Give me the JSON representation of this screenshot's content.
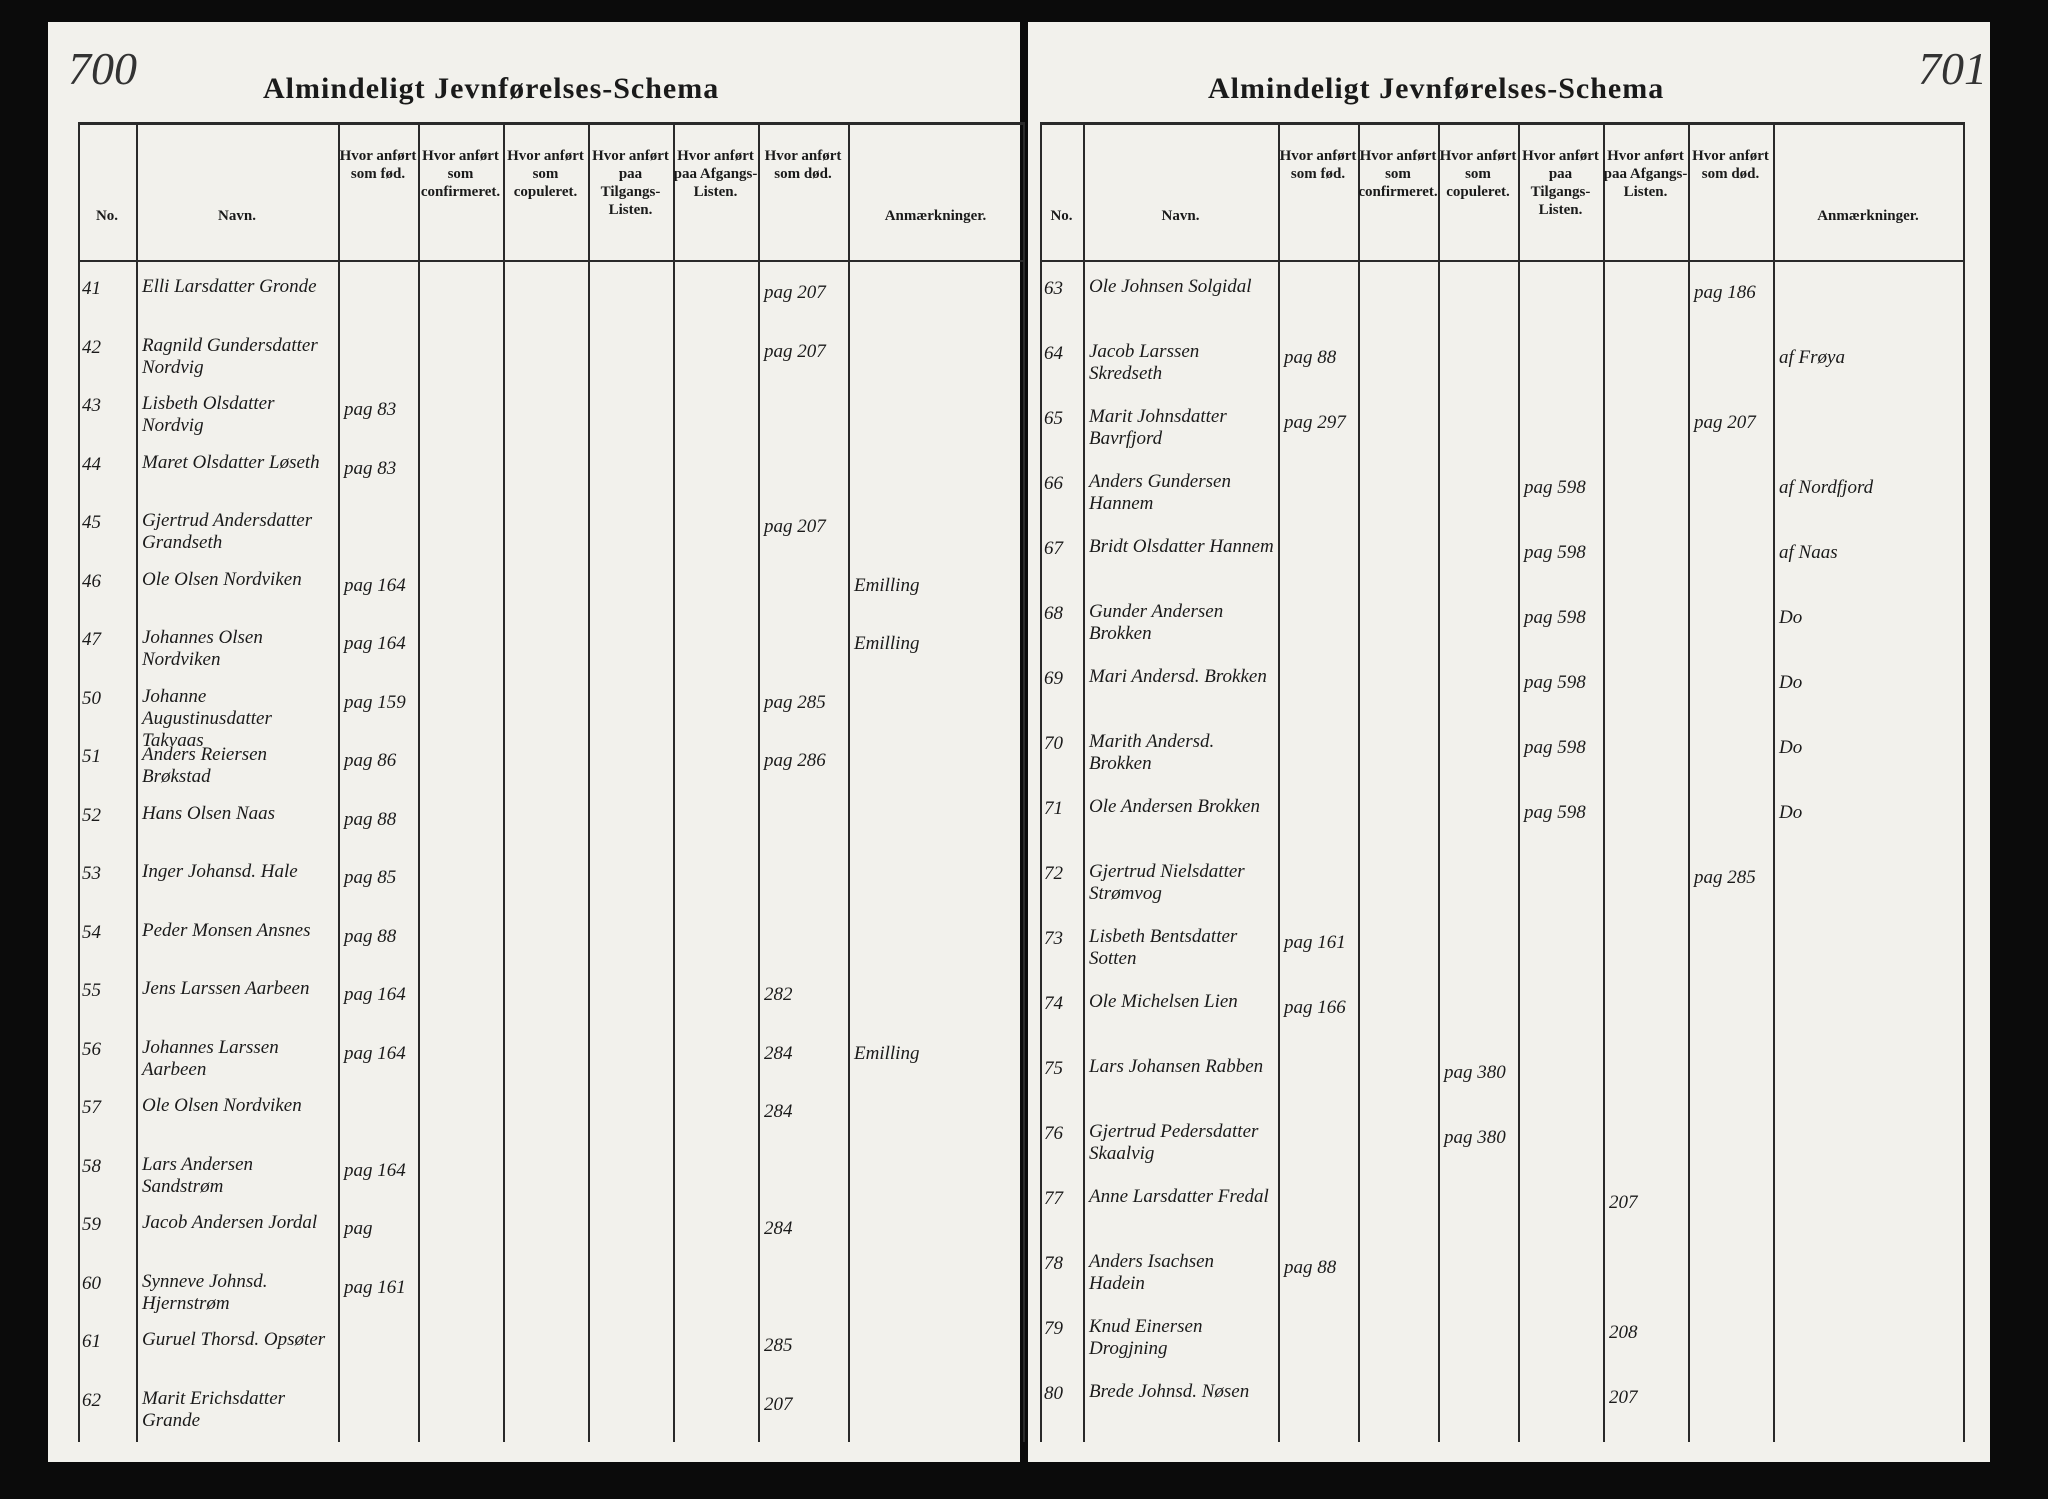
{
  "left_page": {
    "page_number": "700",
    "title": "Almindeligt Jevnførelses-Schema",
    "columns": [
      "No.",
      "Navn.",
      "Hvor anført som fød.",
      "Hvor anført som confirmeret.",
      "Hvor anført som copuleret.",
      "Hvor anført paa Tilgangs-Listen.",
      "Hvor anført paa Afgangs-Listen.",
      "Hvor anført som død.",
      "Anmærkninger."
    ],
    "rows": [
      {
        "no": "41",
        "name": "Elli Larsdatter Gronde",
        "entries": {
          "dod": "pag 207"
        }
      },
      {
        "no": "42",
        "name": "Ragnild Gundersdatter Nordvig",
        "entries": {
          "dod": "pag 207"
        }
      },
      {
        "no": "43",
        "name": "Lisbeth Olsdatter Nordvig",
        "entries": {
          "fod": "pag 83"
        }
      },
      {
        "no": "44",
        "name": "Maret Olsdatter Løseth",
        "entries": {
          "fod": "pag 83"
        }
      },
      {
        "no": "45",
        "name": "Gjertrud Andersdatter Grandseth",
        "entries": {
          "dod": "pag 207"
        }
      },
      {
        "no": "46",
        "name": "Ole Olsen Nordviken",
        "entries": {
          "fod": "pag 164",
          "anm": "Emilling"
        }
      },
      {
        "no": "47",
        "name": "Johannes Olsen Nordviken",
        "entries": {
          "fod": "pag 164",
          "anm": "Emilling"
        }
      },
      {
        "no": "50",
        "name": "Johanne Augustinusdatter Takvaas",
        "entries": {
          "fod": "pag 159",
          "dod": "pag 285"
        }
      },
      {
        "no": "51",
        "name": "Anders Reiersen Brøkstad",
        "entries": {
          "fod": "pag 86",
          "dod": "pag 286"
        }
      },
      {
        "no": "52",
        "name": "Hans Olsen Naas",
        "entries": {
          "fod": "pag 88"
        }
      },
      {
        "no": "53",
        "name": "Inger Johansd. Hale",
        "entries": {
          "fod": "pag 85"
        }
      },
      {
        "no": "54",
        "name": "Peder Monsen Ansnes",
        "entries": {
          "fod": "pag 88"
        }
      },
      {
        "no": "55",
        "name": "Jens Larssen Aarbeen",
        "entries": {
          "fod": "pag 164",
          "dod": "282"
        }
      },
      {
        "no": "56",
        "name": "Johannes Larssen Aarbeen",
        "entries": {
          "fod": "pag 164",
          "dod": "284",
          "anm": "Emilling"
        }
      },
      {
        "no": "57",
        "name": "Ole Olsen Nordviken",
        "entries": {
          "dod": "284"
        }
      },
      {
        "no": "58",
        "name": "Lars Andersen Sandstrøm",
        "entries": {
          "fod": "pag 164"
        }
      },
      {
        "no": "59",
        "name": "Jacob Andersen Jordal",
        "entries": {
          "fod": "pag",
          "dod": "284"
        }
      },
      {
        "no": "60",
        "name": "Synneve Johnsd. Hjernstrøm",
        "entries": {
          "fod": "pag 161"
        }
      },
      {
        "no": "61",
        "name": "Guruel Thorsd. Opsøter",
        "entries": {
          "dod": "285"
        }
      },
      {
        "no": "62",
        "name": "Marit Erichsdatter Grande",
        "entries": {
          "dod": "207"
        }
      }
    ]
  },
  "right_page": {
    "page_number": "701",
    "title": "Almindeligt Jevnførelses-Schema",
    "columns": [
      "No.",
      "Navn.",
      "Hvor anført som fød.",
      "Hvor anført som confirmeret.",
      "Hvor anført som copuleret.",
      "Hvor anført paa Tilgangs-Listen.",
      "Hvor anført paa Afgangs-Listen.",
      "Hvor anført som død.",
      "Anmærkninger."
    ],
    "rows": [
      {
        "no": "63",
        "name": "Ole Johnsen Solgidal",
        "entries": {
          "dod": "pag 186"
        }
      },
      {
        "no": "64",
        "name": "Jacob Larssen Skredseth",
        "entries": {
          "fod": "pag 88",
          "anm": "af Frøya"
        }
      },
      {
        "no": "65",
        "name": "Marit Johnsdatter Bavrfjord",
        "entries": {
          "fod": "pag 297",
          "dod": "pag 207"
        }
      },
      {
        "no": "66",
        "name": "Anders Gundersen Hannem",
        "entries": {
          "til": "pag 598",
          "anm": "af Nordfjord"
        }
      },
      {
        "no": "67",
        "name": "Bridt Olsdatter Hannem",
        "entries": {
          "til": "pag 598",
          "anm": "af Naas"
        }
      },
      {
        "no": "68",
        "name": "Gunder Andersen Brokken",
        "entries": {
          "til": "pag 598",
          "anm": "Do"
        }
      },
      {
        "no": "69",
        "name": "Mari Andersd. Brokken",
        "entries": {
          "til": "pag 598",
          "anm": "Do"
        }
      },
      {
        "no": "70",
        "name": "Marith Andersd. Brokken",
        "entries": {
          "til": "pag 598",
          "anm": "Do"
        }
      },
      {
        "no": "71",
        "name": "Ole Andersen Brokken",
        "entries": {
          "til": "pag 598",
          "anm": "Do"
        }
      },
      {
        "no": "72",
        "name": "Gjertrud Nielsdatter Strømvog",
        "entries": {
          "dod": "pag 285"
        }
      },
      {
        "no": "73",
        "name": "Lisbeth Bentsdatter Sotten",
        "entries": {
          "fod": "pag 161"
        }
      },
      {
        "no": "74",
        "name": "Ole Michelsen Lien",
        "entries": {
          "fod": "pag 166"
        }
      },
      {
        "no": "75",
        "name": "Lars Johansen Rabben",
        "entries": {
          "cop": "pag 380"
        }
      },
      {
        "no": "76",
        "name": "Gjertrud Pedersdatter Skaalvig",
        "entries": {
          "cop": "pag 380"
        }
      },
      {
        "no": "77",
        "name": "Anne Larsdatter Fredal",
        "entries": {
          "afg": "207"
        }
      },
      {
        "no": "78",
        "name": "Anders Isachsen Hadein",
        "entries": {
          "fod": "pag 88"
        }
      },
      {
        "no": "79",
        "name": "Knud Einersen Drogjning",
        "entries": {
          "afg": "208"
        }
      },
      {
        "no": "80",
        "name": "Brede Johnsd. Nøsen",
        "entries": {
          "afg": "207"
        }
      }
    ]
  }
}
